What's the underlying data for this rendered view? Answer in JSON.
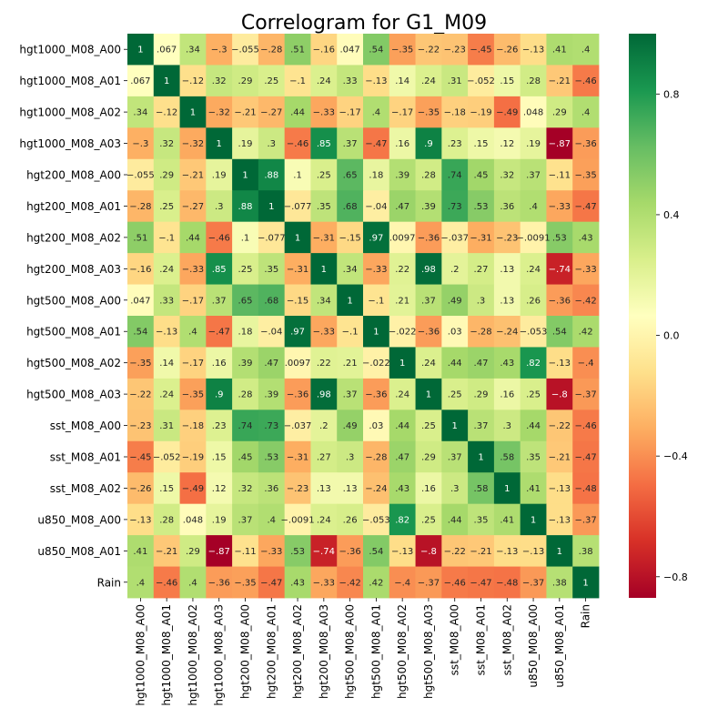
{
  "chart_data": {
    "type": "heatmap",
    "title": "Correlogram for G1_M09",
    "variables": [
      "hgt1000_M08_A00",
      "hgt1000_M08_A01",
      "hgt1000_M08_A02",
      "hgt1000_M08_A03",
      "hgt200_M08_A00",
      "hgt200_M08_A01",
      "hgt200_M08_A02",
      "hgt200_M08_A03",
      "hgt500_M08_A00",
      "hgt500_M08_A01",
      "hgt500_M08_A02",
      "hgt500_M08_A03",
      "sst_M08_A00",
      "sst_M08_A01",
      "sst_M08_A02",
      "u850_M08_A00",
      "u850_M08_A01",
      "Rain"
    ],
    "matrix": [
      [
        1,
        0.067,
        0.34,
        -0.3,
        -0.055,
        -0.28,
        0.51,
        -0.16,
        0.047,
        0.54,
        -0.35,
        -0.22,
        -0.23,
        -0.45,
        -0.26,
        -0.13,
        0.41,
        0.4
      ],
      [
        0.067,
        1,
        -0.12,
        0.32,
        0.29,
        0.25,
        -0.1,
        0.24,
        0.33,
        -0.13,
        0.14,
        0.24,
        0.31,
        -0.052,
        0.15,
        0.28,
        -0.21,
        -0.46
      ],
      [
        0.34,
        -0.12,
        1,
        -0.32,
        -0.21,
        -0.27,
        0.44,
        -0.33,
        -0.17,
        0.4,
        -0.17,
        -0.35,
        -0.18,
        -0.19,
        -0.49,
        0.048,
        0.29,
        0.4
      ],
      [
        -0.3,
        0.32,
        -0.32,
        1,
        0.19,
        0.3,
        -0.46,
        0.85,
        0.37,
        -0.47,
        0.16,
        0.9,
        0.23,
        0.15,
        0.12,
        0.19,
        -0.87,
        -0.36
      ],
      [
        -0.055,
        0.29,
        -0.21,
        0.19,
        1,
        0.88,
        0.1,
        0.25,
        0.65,
        0.18,
        0.39,
        0.28,
        0.74,
        0.45,
        0.32,
        0.37,
        -0.11,
        -0.35
      ],
      [
        -0.28,
        0.25,
        -0.27,
        0.3,
        0.88,
        1,
        -0.077,
        0.35,
        0.68,
        -0.04,
        0.47,
        0.39,
        0.73,
        0.53,
        0.36,
        0.4,
        -0.33,
        -0.47
      ],
      [
        0.51,
        -0.1,
        0.44,
        -0.46,
        0.1,
        -0.077,
        1,
        -0.31,
        -0.15,
        0.97,
        0.0097,
        -0.36,
        -0.037,
        -0.31,
        -0.23,
        -0.0091,
        0.53,
        0.43
      ],
      [
        -0.16,
        0.24,
        -0.33,
        0.85,
        0.25,
        0.35,
        -0.31,
        1,
        0.34,
        -0.33,
        0.22,
        0.98,
        0.2,
        0.27,
        0.13,
        0.24,
        -0.74,
        -0.33
      ],
      [
        0.047,
        0.33,
        -0.17,
        0.37,
        0.65,
        0.68,
        -0.15,
        0.34,
        1,
        -0.1,
        0.21,
        0.37,
        0.49,
        0.3,
        0.13,
        0.26,
        -0.36,
        -0.42
      ],
      [
        0.54,
        -0.13,
        0.4,
        -0.47,
        0.18,
        -0.04,
        0.97,
        -0.33,
        -0.1,
        1,
        -0.022,
        -0.36,
        0.03,
        -0.28,
        -0.24,
        -0.053,
        0.54,
        0.42
      ],
      [
        -0.35,
        0.14,
        -0.17,
        0.16,
        0.39,
        0.47,
        0.0097,
        0.22,
        0.21,
        -0.022,
        1,
        0.24,
        0.44,
        0.47,
        0.43,
        0.82,
        -0.13,
        -0.4
      ],
      [
        -0.22,
        0.24,
        -0.35,
        0.9,
        0.28,
        0.39,
        -0.36,
        0.98,
        0.37,
        -0.36,
        0.24,
        1,
        0.25,
        0.29,
        0.16,
        0.25,
        -0.8,
        -0.37
      ],
      [
        -0.23,
        0.31,
        -0.18,
        0.23,
        0.74,
        0.73,
        -0.037,
        0.2,
        0.49,
        0.03,
        0.44,
        0.25,
        1,
        0.37,
        0.3,
        0.44,
        -0.22,
        -0.46
      ],
      [
        -0.45,
        -0.052,
        -0.19,
        0.15,
        0.45,
        0.53,
        -0.31,
        0.27,
        0.3,
        -0.28,
        0.47,
        0.29,
        0.37,
        1,
        0.58,
        0.35,
        -0.21,
        -0.47
      ],
      [
        -0.26,
        0.15,
        -0.49,
        0.12,
        0.32,
        0.36,
        -0.23,
        0.13,
        0.13,
        -0.24,
        0.43,
        0.16,
        0.3,
        0.58,
        1,
        0.41,
        -0.13,
        -0.48
      ],
      [
        -0.13,
        0.28,
        0.048,
        0.19,
        0.37,
        0.4,
        -0.0091,
        0.24,
        0.26,
        -0.053,
        0.82,
        0.25,
        0.44,
        0.35,
        0.41,
        1,
        -0.13,
        -0.37
      ],
      [
        0.41,
        -0.21,
        0.29,
        -0.87,
        -0.11,
        -0.33,
        0.53,
        -0.74,
        -0.36,
        0.54,
        -0.13,
        -0.8,
        -0.22,
        -0.21,
        -0.13,
        -0.13,
        1,
        0.38
      ],
      [
        0.4,
        -0.46,
        0.4,
        -0.36,
        -0.35,
        -0.47,
        0.43,
        -0.33,
        -0.42,
        0.42,
        -0.4,
        -0.37,
        -0.46,
        -0.47,
        -0.48,
        -0.37,
        0.38,
        1
      ]
    ],
    "colormap": "RdYlGn",
    "colorbar": {
      "min": -0.87,
      "max": 1,
      "ticks": [
        -0.8,
        -0.4,
        0.0,
        0.4,
        0.8
      ],
      "tick_labels": [
        "−0.8",
        "−0.4",
        "0.0",
        "0.4",
        "0.8"
      ]
    },
    "annotations": true,
    "xlabel": "",
    "ylabel": ""
  }
}
